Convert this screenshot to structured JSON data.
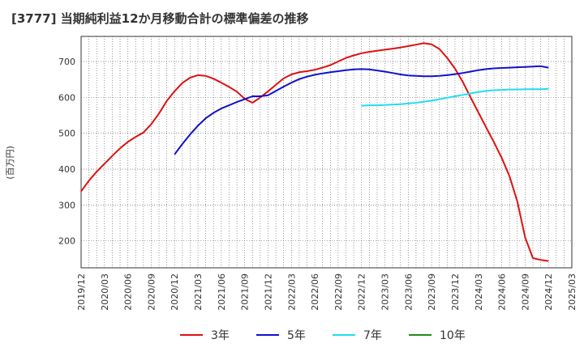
{
  "title": "[3777]  当期純利益12か月移動合計の標準偏差の推移",
  "chart_data": {
    "type": "line",
    "title": "[3777]  当期純利益12か月移動合計の標準偏差の推移",
    "ylabel": "(百万円)",
    "xlabel": "",
    "ylim": [
      125,
      770
    ],
    "yticks": [
      200,
      300,
      400,
      500,
      600,
      700
    ],
    "xlim_months": [
      0,
      63
    ],
    "x_tick_labels": [
      "2019/12",
      "2020/03",
      "2020/06",
      "2020/09",
      "2020/12",
      "2021/03",
      "2021/06",
      "2021/09",
      "2021/12",
      "2022/03",
      "2022/06",
      "2022/09",
      "2022/12",
      "2023/03",
      "2023/06",
      "2023/09",
      "2023/12",
      "2024/03",
      "2024/06",
      "2024/09",
      "2024/12",
      "2025/03"
    ],
    "grid": true,
    "legend_position": "bottom",
    "series": [
      {
        "name": "3年",
        "color": "#dd1111",
        "start_month": 0,
        "values": [
          338,
          368,
          393,
          415,
          437,
          458,
          476,
          490,
          502,
          525,
          555,
          590,
          617,
          640,
          655,
          662,
          660,
          652,
          641,
          629,
          616,
          596,
          585,
          600,
          617,
          635,
          653,
          664,
          670,
          673,
          677,
          683,
          690,
          700,
          710,
          717,
          723,
          727,
          730,
          733,
          736,
          739,
          743,
          747,
          751,
          748,
          735,
          710,
          680,
          643,
          600,
          558,
          516,
          475,
          431,
          380,
          310,
          210,
          152,
          147,
          144
        ]
      },
      {
        "name": "5年",
        "color": "#1111cc",
        "start_month": 12,
        "values": [
          441,
          470,
          497,
          521,
          542,
          557,
          569,
          578,
          587,
          595,
          603,
          603,
          606,
          618,
          630,
          641,
          651,
          658,
          663,
          667,
          670,
          673,
          676,
          678,
          679,
          678,
          675,
          672,
          668,
          664,
          661,
          660,
          659,
          659,
          660,
          662,
          665,
          668,
          672,
          676,
          679,
          681,
          682,
          683,
          684,
          685,
          686,
          687,
          683
        ]
      },
      {
        "name": "7年",
        "color": "#22ddee",
        "start_month": 36,
        "values": [
          577,
          578,
          578,
          579,
          580,
          581,
          583,
          585,
          588,
          591,
          595,
          599,
          603,
          607,
          611,
          615,
          618,
          620,
          621,
          622,
          622,
          623,
          623,
          623,
          624
        ]
      },
      {
        "name": "10年",
        "color": "#228822",
        "start_month": 0,
        "values": []
      }
    ]
  }
}
